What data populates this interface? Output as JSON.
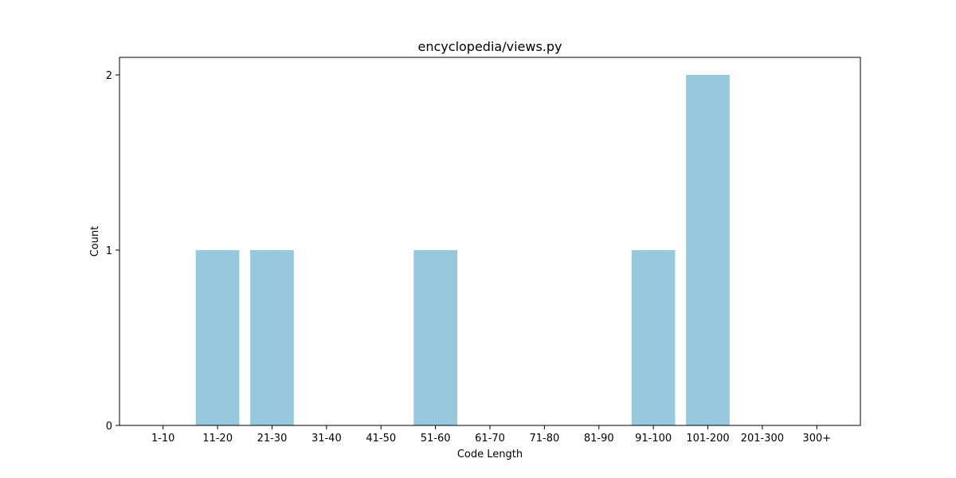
{
  "chart_data": {
    "type": "bar",
    "title": "encyclopedia/views.py",
    "xlabel": "Code Length",
    "ylabel": "Count",
    "categories": [
      "1-10",
      "11-20",
      "21-30",
      "31-40",
      "41-50",
      "51-60",
      "61-70",
      "71-80",
      "81-90",
      "91-100",
      "101-200",
      "201-300",
      "300+"
    ],
    "values": [
      0,
      1,
      1,
      0,
      0,
      1,
      0,
      0,
      0,
      1,
      2,
      0,
      0
    ],
    "ylim": [
      0,
      2.1
    ],
    "yticks": [
      "0",
      "1",
      "2"
    ],
    "grid": false,
    "bar_color": "#96c9dc"
  }
}
